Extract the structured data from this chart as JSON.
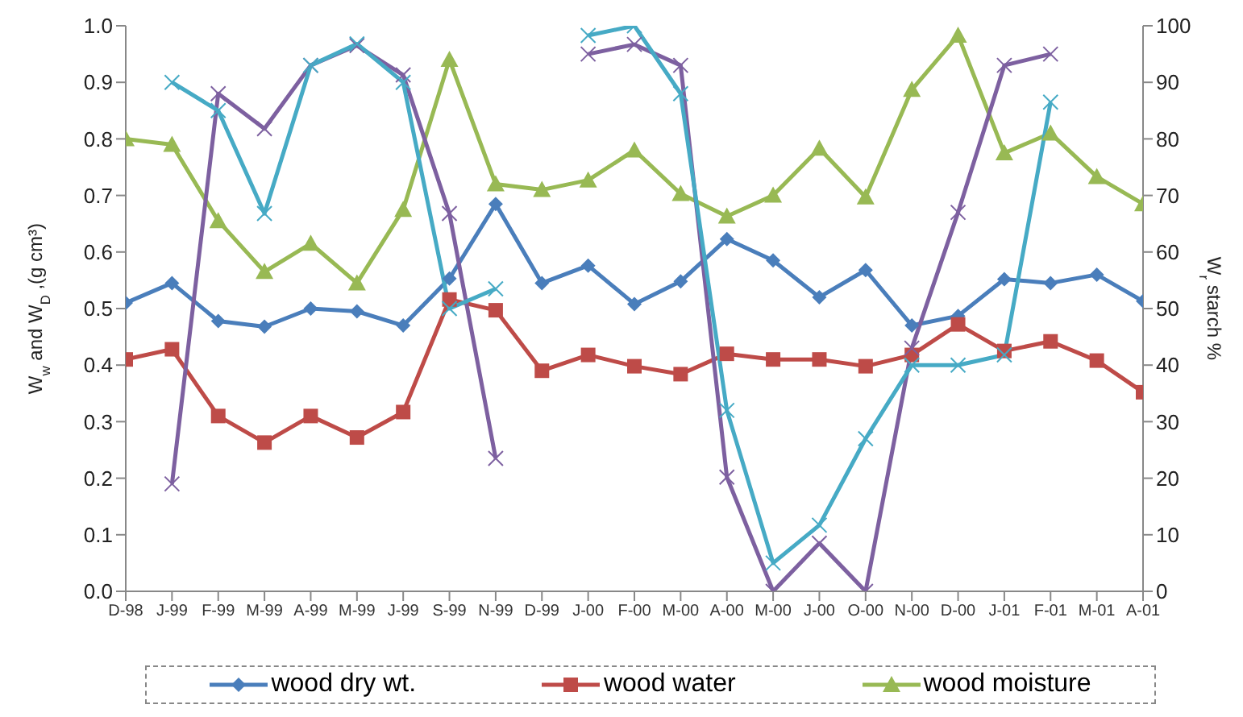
{
  "chart_data": {
    "type": "line",
    "xlabel": null,
    "ylabel": "W$_{w}$ and W$_{D}$ ,(g cm³)",
    "y2label": "W$_{r}$ starch %",
    "categories": [
      "D-98",
      "J-99",
      "F-99",
      "M-99",
      "A-99",
      "M-99",
      "J-99",
      "S-99",
      "N-99",
      "D-99",
      "J-00",
      "F-00",
      "M-00",
      "A-00",
      "M-00",
      "J-00",
      "O-00",
      "N-00",
      "D-00",
      "J-01",
      "F-01",
      "M-01",
      "A-01"
    ],
    "series": [
      {
        "name": "wood dry wt.",
        "color": "#4a7ebb",
        "marker": "diamond",
        "values": [
          0.51,
          0.545,
          0.478,
          0.468,
          0.5,
          0.495,
          0.47,
          0.553,
          0.685,
          0.545,
          0.576,
          0.508,
          0.548,
          0.623,
          0.585,
          0.52,
          0.568,
          0.47,
          0.487,
          0.552,
          0.545,
          0.56,
          0.513
        ]
      },
      {
        "name": "wood water",
        "color": "#be4b48",
        "marker": "square",
        "values": [
          0.41,
          0.428,
          0.31,
          0.263,
          0.31,
          0.272,
          0.317,
          0.516,
          0.497,
          0.39,
          0.418,
          0.398,
          0.384,
          0.42,
          0.41,
          0.41,
          0.398,
          0.418,
          0.472,
          0.425,
          0.442,
          0.408,
          0.352
        ]
      },
      {
        "name": "wood moisture",
        "color": "#98b954",
        "marker": "triangle",
        "axis": "y2",
        "values": [
          80,
          79,
          65.5,
          56.5,
          61.5,
          54.5,
          67.5,
          94,
          72,
          71,
          72.7,
          78,
          70.3,
          66.3,
          70,
          78.3,
          69.7,
          88.7,
          98.3,
          77.5,
          81,
          73.3,
          68.5
        ]
      },
      {
        "color": "#7d60a0",
        "marker": "cross",
        "axis": "y2",
        "values": [
          null,
          19,
          88,
          81.8,
          93,
          96.5,
          91.3,
          66.8,
          23.5,
          null,
          95,
          96.7,
          93,
          20.2,
          0,
          8.5,
          0,
          43,
          67,
          93,
          95,
          null,
          null
        ]
      },
      {
        "color": "#46aac5",
        "marker": "cross",
        "axis": "y2",
        "values": [
          null,
          90,
          85,
          66.8,
          93,
          96.8,
          90,
          50,
          53.5,
          null,
          98.3,
          100,
          88,
          32,
          5,
          11.7,
          27,
          40,
          40,
          41.8,
          86.5,
          null,
          null
        ]
      }
    ],
    "ylim": [
      0,
      1
    ],
    "yticks": [
      {
        "value": 0,
        "label": "0.0"
      },
      0.1,
      0.2,
      0.3,
      0.4,
      0.5,
      0.6,
      0.7,
      0.8,
      0.9,
      {
        "value": 1,
        "label": "1.0"
      }
    ],
    "y2lim": [
      0,
      100
    ],
    "y2ticks": [
      0,
      10,
      20,
      30,
      40,
      50,
      60,
      70,
      80,
      90,
      100
    ],
    "legend": "bottom"
  }
}
